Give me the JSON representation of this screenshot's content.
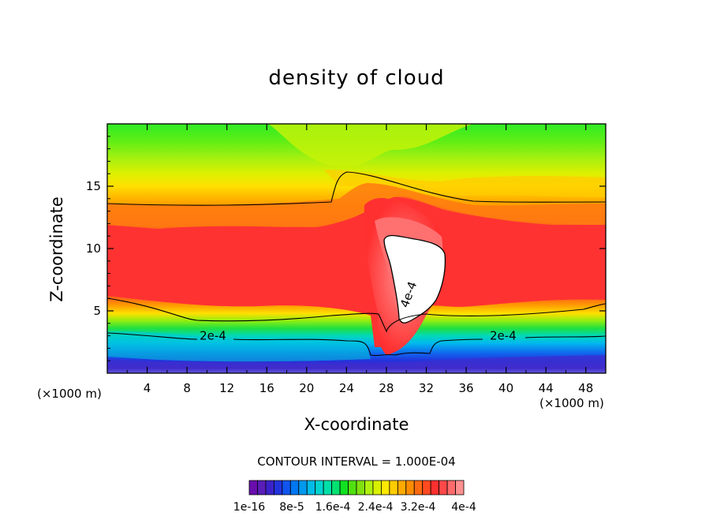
{
  "chart_data": {
    "type": "heatmap",
    "title": "density of cloud",
    "xlabel": "X-coordinate",
    "ylabel": "Z-coordinate",
    "x_unit": "(×1000 m)",
    "xlim": [
      0,
      50
    ],
    "ylim": [
      0,
      20
    ],
    "x_ticks": [
      "4",
      "8",
      "12",
      "16",
      "20",
      "24",
      "28",
      "32",
      "36",
      "40",
      "44",
      "48"
    ],
    "y_ticks": [
      "5",
      "10",
      "15"
    ],
    "contour_labels": [
      {
        "text": "2e-4",
        "x": 10.6,
        "y": 2.7
      },
      {
        "text": "4e-4",
        "x": 30.6,
        "y": 6.2
      },
      {
        "text": "2e-4",
        "x": 39.7,
        "y": 2.7
      }
    ],
    "contour_interval": "CONTOUR INTERVAL = 1.000E-04",
    "colorbar": {
      "labels": [
        "1e-16",
        "8e-5",
        "1.6e-4",
        "2.4e-4",
        "3.2e-4",
        "4e-4"
      ],
      "colors": [
        "#6a0dad",
        "#5a1db8",
        "#3b22c8",
        "#2233dd",
        "#1155ee",
        "#0077f2",
        "#0099ee",
        "#00bbe8",
        "#00d4d0",
        "#00e0a8",
        "#00e070",
        "#10e020",
        "#50e010",
        "#80e010",
        "#b0f010",
        "#d8f000",
        "#ffe800",
        "#ffcc00",
        "#ffaa00",
        "#ff8c00",
        "#ff6a10",
        "#ff4a20",
        "#ff3030",
        "#ff4848",
        "#ff6a6a",
        "#ff9090"
      ]
    }
  },
  "colors": {
    "top": "#30ee20",
    "yellow": "#ffdd00",
    "orange": "#ff8f00",
    "red": "#ff3535",
    "core": "#ffffff"
  }
}
